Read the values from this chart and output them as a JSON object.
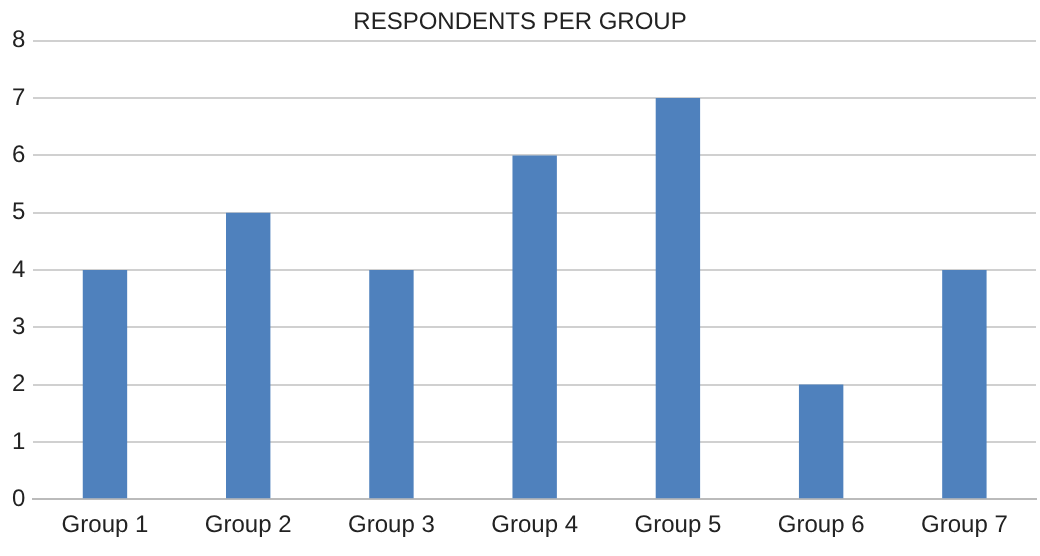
{
  "chart_data": {
    "type": "bar",
    "title": "RESPONDENTS PER GROUP",
    "categories": [
      "Group 1",
      "Group 2",
      "Group 3",
      "Group 4",
      "Group 5",
      "Group 6",
      "Group 7"
    ],
    "values": [
      4,
      5,
      4,
      6,
      7,
      2,
      4
    ],
    "color": "#4f81bd",
    "ylim": [
      0,
      8
    ],
    "yticks": [
      0,
      1,
      2,
      3,
      4,
      5,
      6,
      7,
      8
    ],
    "grid": "y"
  }
}
